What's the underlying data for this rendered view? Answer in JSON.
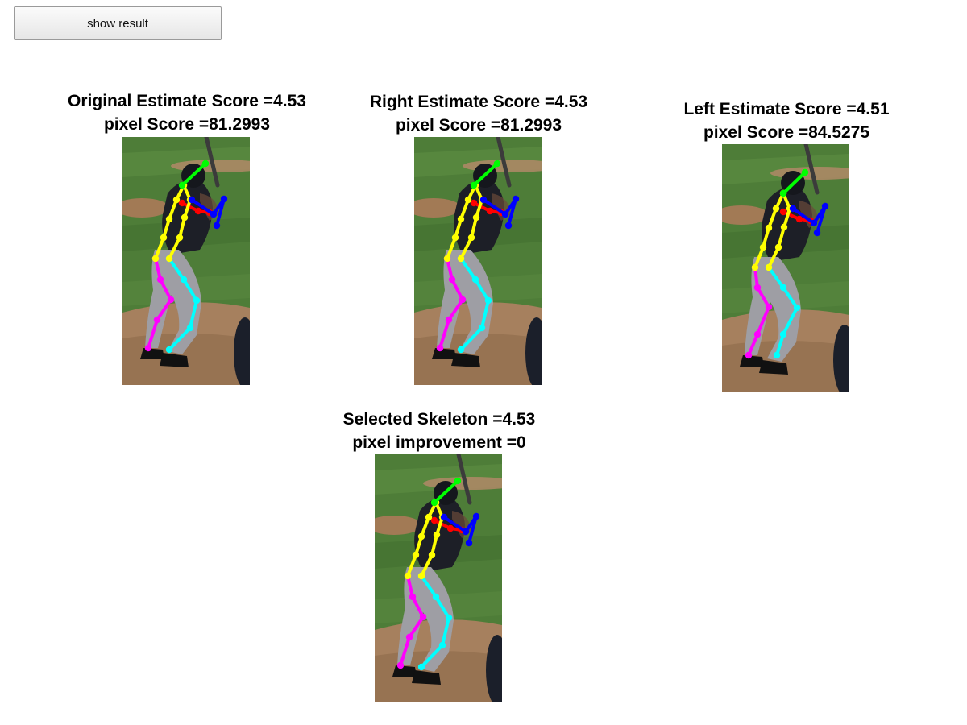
{
  "toolbar": {
    "show_result_label": "show result"
  },
  "panels": {
    "original": {
      "title_line1": "Original Estimate Score =4.53",
      "title_line2": "pixel Score =81.2993"
    },
    "right": {
      "title_line1": "Right Estimate Score =4.53",
      "title_line2": "pixel Score =81.2993"
    },
    "left": {
      "title_line1": "Left Estimate Score =4.51",
      "title_line2": "pixel Score =84.5275"
    },
    "selected": {
      "title_line1": "Selected Skeleton =4.53",
      "title_line2": "pixel improvement =0"
    }
  },
  "skeleton_colors": {
    "head": "#00ff00",
    "torso": "#ffff00",
    "right_arm": "#0000ff",
    "left_arm": "#ff0000",
    "right_leg": "#ff00ff",
    "left_leg": "#00ffff"
  }
}
